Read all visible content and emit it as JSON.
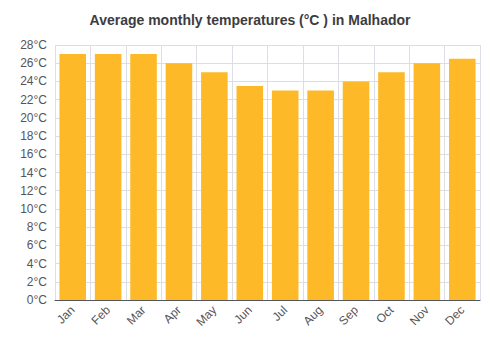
{
  "chart_data": {
    "type": "bar",
    "title": "Average monthly temperatures (°C ) in Malhador",
    "categories": [
      "Jan",
      "Feb",
      "Mar",
      "Apr",
      "May",
      "Jun",
      "Jul",
      "Aug",
      "Sep",
      "Oct",
      "Nov",
      "Dec"
    ],
    "values": [
      27,
      27,
      27,
      26,
      25,
      23.5,
      23,
      23,
      24,
      25,
      26,
      26.5
    ],
    "color": "#FDB927",
    "ylim": [
      0,
      28
    ],
    "yticks": [
      {
        "value": 0,
        "label": "0°C"
      },
      {
        "value": 2,
        "label": "2°C"
      },
      {
        "value": 4,
        "label": "4°C"
      },
      {
        "value": 6,
        "label": "6°C"
      },
      {
        "value": 8,
        "label": "8°C"
      },
      {
        "value": 10,
        "label": "10°C"
      },
      {
        "value": 12,
        "label": "12°C"
      },
      {
        "value": 14,
        "label": "14°C"
      },
      {
        "value": 16,
        "label": "16°C"
      },
      {
        "value": 18,
        "label": "18°C"
      },
      {
        "value": 20,
        "label": "20°C"
      },
      {
        "value": 22,
        "label": "22°C"
      },
      {
        "value": 24,
        "label": "24°C"
      },
      {
        "value": 26,
        "label": "26°C"
      },
      {
        "value": 28,
        "label": "28°C"
      }
    ],
    "grid": true
  }
}
